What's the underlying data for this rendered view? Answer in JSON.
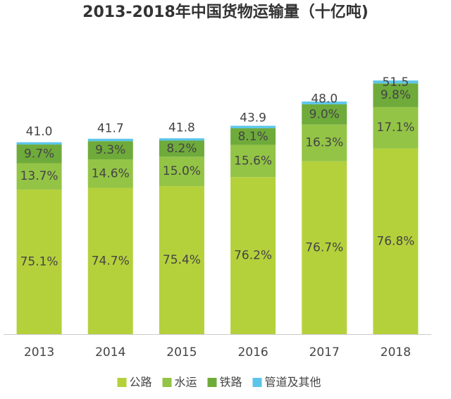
{
  "chart_data": {
    "type": "stacked_bar",
    "title": "2013-2018年中国货物运输量（十亿吨)",
    "categories": [
      "2013",
      "2014",
      "2015",
      "2016",
      "2017",
      "2018"
    ],
    "totals": {
      "values": [
        41.0,
        41.7,
        41.8,
        43.9,
        48.0,
        51.5
      ],
      "value_labels": [
        "41.0",
        "41.7",
        "41.8",
        "43.9",
        "48.0",
        "51.5"
      ]
    },
    "series": [
      {
        "name": "公路",
        "color": "#b4d13c",
        "values": [
          75.1,
          74.7,
          75.4,
          76.2,
          76.7,
          76.8
        ],
        "value_labels": [
          "75.1%",
          "74.7%",
          "75.4%",
          "76.2%",
          "76.7%",
          "76.8%"
        ]
      },
      {
        "name": "水运",
        "color": "#93c446",
        "values": [
          13.7,
          14.6,
          15.0,
          15.6,
          16.3,
          17.1
        ],
        "value_labels": [
          "13.7%",
          "14.6%",
          "15.0%",
          "15.6%",
          "16.3%",
          "17.1%"
        ]
      },
      {
        "name": "铁路",
        "color": "#6fab3b",
        "values": [
          9.7,
          9.3,
          8.2,
          8.1,
          9.0,
          9.8
        ],
        "value_labels": [
          "9.7%",
          "9.3%",
          "8.2%",
          "8.1%",
          "9.0%",
          "9.8%"
        ]
      },
      {
        "name": "管道及其他",
        "color": "#5cc6ea",
        "values": [
          1.2,
          1.2,
          1.2,
          1.2,
          1.2,
          1.2
        ]
      }
    ]
  }
}
